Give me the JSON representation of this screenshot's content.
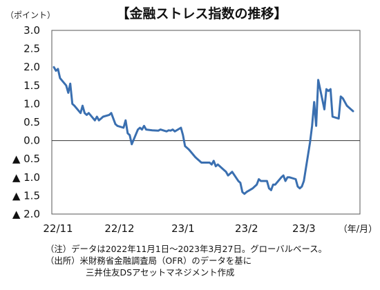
{
  "chart_data": {
    "type": "line",
    "title": "【金融ストレス指数の推移】",
    "y_unit_label": "（ポイント）",
    "x_unit_label": "（年/月）",
    "ylim": [
      -2.0,
      3.0
    ],
    "y_ticks": [
      {
        "value": 3.0,
        "label": "3.0"
      },
      {
        "value": 2.5,
        "label": "2.5"
      },
      {
        "value": 2.0,
        "label": "2.0"
      },
      {
        "value": 1.5,
        "label": "1.5"
      },
      {
        "value": 1.0,
        "label": "1.0"
      },
      {
        "value": 0.5,
        "label": "0.5"
      },
      {
        "value": 0.0,
        "label": "0.0"
      },
      {
        "value": -0.5,
        "label": "▲ 0.5"
      },
      {
        "value": -1.0,
        "label": "▲ 1.0"
      },
      {
        "value": -1.5,
        "label": "▲ 1.5"
      },
      {
        "value": -2.0,
        "label": "▲ 2.0"
      }
    ],
    "x_range": [
      "2022-11-01",
      "2023-03-27"
    ],
    "x_ticks": [
      {
        "date": "2022-11-01",
        "label": "22/11"
      },
      {
        "date": "2022-12-01",
        "label": "22/12"
      },
      {
        "date": "2023-01-01",
        "label": "23/1"
      },
      {
        "date": "2023-02-01",
        "label": "23/2"
      },
      {
        "date": "2023-03-01",
        "label": "23/3"
      }
    ],
    "grid": false,
    "line_color": "#3a6fb0",
    "series": [
      {
        "points": [
          [
            "2022-11-01",
            2.0
          ],
          [
            "2022-11-02",
            1.9
          ],
          [
            "2022-11-03",
            1.95
          ],
          [
            "2022-11-04",
            1.7
          ],
          [
            "2022-11-07",
            1.5
          ],
          [
            "2022-11-08",
            1.3
          ],
          [
            "2022-11-09",
            1.55
          ],
          [
            "2022-11-10",
            1.0
          ],
          [
            "2022-11-11",
            0.95
          ],
          [
            "2022-11-14",
            0.75
          ],
          [
            "2022-11-15",
            0.95
          ],
          [
            "2022-11-16",
            0.75
          ],
          [
            "2022-11-17",
            0.7
          ],
          [
            "2022-11-18",
            0.75
          ],
          [
            "2022-11-21",
            0.55
          ],
          [
            "2022-11-22",
            0.65
          ],
          [
            "2022-11-23",
            0.55
          ],
          [
            "2022-11-24",
            0.6
          ],
          [
            "2022-11-25",
            0.65
          ],
          [
            "2022-11-28",
            0.7
          ],
          [
            "2022-11-29",
            0.75
          ],
          [
            "2022-11-30",
            0.6
          ],
          [
            "2022-12-01",
            0.45
          ],
          [
            "2022-12-02",
            0.4
          ],
          [
            "2022-12-05",
            0.35
          ],
          [
            "2022-12-06",
            0.55
          ],
          [
            "2022-12-07",
            0.2
          ],
          [
            "2022-12-08",
            0.15
          ],
          [
            "2022-12-09",
            -0.1
          ],
          [
            "2022-12-12",
            0.3
          ],
          [
            "2022-12-13",
            0.35
          ],
          [
            "2022-12-14",
            0.3
          ],
          [
            "2022-12-15",
            0.4
          ],
          [
            "2022-12-16",
            0.3
          ],
          [
            "2022-12-19",
            0.28
          ],
          [
            "2022-12-22",
            0.27
          ],
          [
            "2022-12-23",
            0.3
          ],
          [
            "2022-12-26",
            0.25
          ],
          [
            "2022-12-27",
            0.28
          ],
          [
            "2022-12-28",
            0.27
          ],
          [
            "2022-12-29",
            0.3
          ],
          [
            "2022-12-30",
            0.25
          ],
          [
            "2023-01-02",
            0.35
          ],
          [
            "2023-01-03",
            0.15
          ],
          [
            "2023-01-04",
            -0.15
          ],
          [
            "2023-01-05",
            -0.2
          ],
          [
            "2023-01-06",
            -0.25
          ],
          [
            "2023-01-09",
            -0.45
          ],
          [
            "2023-01-10",
            -0.5
          ],
          [
            "2023-01-11",
            -0.55
          ],
          [
            "2023-01-12",
            -0.6
          ],
          [
            "2023-01-13",
            -0.6
          ],
          [
            "2023-01-16",
            -0.6
          ],
          [
            "2023-01-17",
            -0.65
          ],
          [
            "2023-01-18",
            -0.55
          ],
          [
            "2023-01-19",
            -0.7
          ],
          [
            "2023-01-20",
            -0.65
          ],
          [
            "2023-01-23",
            -0.8
          ],
          [
            "2023-01-24",
            -0.85
          ],
          [
            "2023-01-25",
            -0.95
          ],
          [
            "2023-01-26",
            -0.9
          ],
          [
            "2023-01-27",
            -0.85
          ],
          [
            "2023-01-30",
            -1.1
          ],
          [
            "2023-01-31",
            -1.15
          ],
          [
            "2023-02-01",
            -1.4
          ],
          [
            "2023-02-02",
            -1.45
          ],
          [
            "2023-02-03",
            -1.4
          ],
          [
            "2023-02-06",
            -1.3
          ],
          [
            "2023-02-07",
            -1.25
          ],
          [
            "2023-02-08",
            -1.2
          ],
          [
            "2023-02-09",
            -1.05
          ],
          [
            "2023-02-10",
            -1.1
          ],
          [
            "2023-02-13",
            -1.1
          ],
          [
            "2023-02-14",
            -1.3
          ],
          [
            "2023-02-15",
            -1.35
          ],
          [
            "2023-02-16",
            -1.2
          ],
          [
            "2023-02-17",
            -1.2
          ],
          [
            "2023-02-20",
            -1.0
          ],
          [
            "2023-02-21",
            -0.95
          ],
          [
            "2023-02-22",
            -1.1
          ],
          [
            "2023-02-23",
            -1.0
          ],
          [
            "2023-02-24",
            -1.0
          ],
          [
            "2023-02-27",
            -1.05
          ],
          [
            "2023-02-28",
            -1.25
          ],
          [
            "2023-03-01",
            -1.3
          ],
          [
            "2023-03-02",
            -1.25
          ],
          [
            "2023-03-03",
            -1.1
          ],
          [
            "2023-03-06",
            -0.05
          ],
          [
            "2023-03-07",
            0.4
          ],
          [
            "2023-03-08",
            1.05
          ],
          [
            "2023-03-09",
            0.4
          ],
          [
            "2023-03-10",
            1.65
          ],
          [
            "2023-03-13",
            0.85
          ],
          [
            "2023-03-14",
            1.4
          ],
          [
            "2023-03-15",
            1.35
          ],
          [
            "2023-03-16",
            1.4
          ],
          [
            "2023-03-17",
            0.65
          ],
          [
            "2023-03-20",
            0.6
          ],
          [
            "2023-03-21",
            1.2
          ],
          [
            "2023-03-22",
            1.15
          ],
          [
            "2023-03-23",
            1.05
          ],
          [
            "2023-03-24",
            0.95
          ],
          [
            "2023-03-27",
            0.8
          ]
        ]
      }
    ]
  },
  "notes": [
    "（注）データは2022年11月1日～2023年3月27日。グローバルベース。",
    "（出所）米財務省金融調査局（OFR）のデータを基に",
    "三井住友DSアセットマネジメント作成"
  ]
}
